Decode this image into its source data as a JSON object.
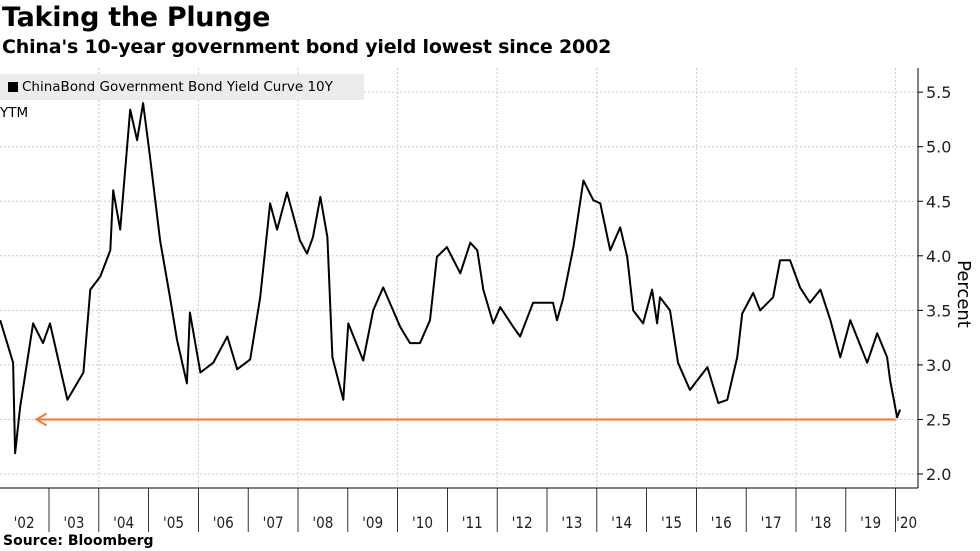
{
  "title": "Taking the Plunge",
  "subtitle": "China's 10-year government bond yield lowest since 2002",
  "source": "Source: Bloomberg",
  "chart_data": {
    "type": "line",
    "title": "Taking the Plunge",
    "subtitle": "China's 10-year government bond yield lowest since 2002",
    "xlabel": "",
    "ylabel": "Percent",
    "y_axis_position": "right",
    "xlim": [
      2002,
      2020.45
    ],
    "ylim": [
      1.87,
      5.75
    ],
    "yticks": [
      2.0,
      2.5,
      3.0,
      3.5,
      4.0,
      4.5,
      5.0,
      5.5
    ],
    "ytick_labels": [
      "2.0",
      "2.5",
      "3.0",
      "3.5",
      "4.0",
      "4.5",
      "5.0",
      "5.5"
    ],
    "xtick_labels": [
      "'02",
      "'03",
      "'04",
      "'05",
      "'06",
      "'07",
      "'08",
      "'09",
      "'10",
      "'11",
      "'12",
      "'13",
      "'14",
      "'15",
      "'16",
      "'17",
      "'18",
      "'19",
      "'20"
    ],
    "grid": true,
    "legend_position": "top-left",
    "series": [
      {
        "name": "ChinaBond Government Bond Yield Curve 10Y YTM",
        "color": "#000000",
        "x": [
          2002.02,
          2002.28,
          2002.32,
          2002.42,
          2002.68,
          2002.88,
          2003.02,
          2003.37,
          2003.69,
          2003.83,
          2004.03,
          2004.23,
          2004.29,
          2004.43,
          2004.63,
          2004.77,
          2004.89,
          2005.03,
          2005.23,
          2005.43,
          2005.57,
          2005.77,
          2005.83,
          2006.04,
          2006.3,
          2006.58,
          2006.78,
          2007.04,
          2007.24,
          2007.44,
          2007.58,
          2007.78,
          2008.04,
          2008.18,
          2008.3,
          2008.45,
          2008.59,
          2008.69,
          2008.91,
          2009.01,
          2009.31,
          2009.51,
          2009.71,
          2010.05,
          2010.25,
          2010.45,
          2010.65,
          2010.79,
          2010.99,
          2011.26,
          2011.46,
          2011.6,
          2011.72,
          2011.92,
          2012.06,
          2012.32,
          2012.46,
          2012.72,
          2013.12,
          2013.2,
          2013.32,
          2013.53,
          2013.73,
          2013.93,
          2014.07,
          2014.27,
          2014.47,
          2014.61,
          2014.73,
          2014.93,
          2015.11,
          2015.21,
          2015.27,
          2015.47,
          2015.63,
          2015.87,
          2016.22,
          2016.44,
          2016.62,
          2016.82,
          2016.92,
          2017.14,
          2017.28,
          2017.54,
          2017.68,
          2017.88,
          2018.08,
          2018.28,
          2018.49,
          2018.69,
          2018.89,
          2019.09,
          2019.43,
          2019.63,
          2019.83,
          2019.89,
          2020.03,
          2020.09
        ],
        "values": [
          3.41,
          3.02,
          2.19,
          2.61,
          3.38,
          3.2,
          3.38,
          2.68,
          2.93,
          3.69,
          3.81,
          4.05,
          4.6,
          4.24,
          5.34,
          5.06,
          5.4,
          4.9,
          4.14,
          3.62,
          3.23,
          2.83,
          3.48,
          2.93,
          3.02,
          3.26,
          2.96,
          3.05,
          3.62,
          4.48,
          4.24,
          4.58,
          4.14,
          4.02,
          4.17,
          4.54,
          4.17,
          3.07,
          2.68,
          3.38,
          3.04,
          3.5,
          3.71,
          3.35,
          3.2,
          3.2,
          3.41,
          3.99,
          4.08,
          3.84,
          4.12,
          4.05,
          3.69,
          3.38,
          3.53,
          3.35,
          3.26,
          3.57,
          3.57,
          3.41,
          3.6,
          4.08,
          4.69,
          4.51,
          4.48,
          4.05,
          4.26,
          3.99,
          3.5,
          3.38,
          3.69,
          3.38,
          3.62,
          3.5,
          3.02,
          2.77,
          2.98,
          2.65,
          2.68,
          3.07,
          3.47,
          3.66,
          3.5,
          3.62,
          3.96,
          3.96,
          3.71,
          3.57,
          3.69,
          3.41,
          3.07,
          3.41,
          3.02,
          3.29,
          3.07,
          2.86,
          2.52,
          2.59
        ]
      }
    ],
    "annotations": [
      {
        "type": "arrow",
        "y": 2.5,
        "x_from": 2020.0,
        "x_to": 2002.75,
        "color": "#f07a2f"
      }
    ]
  }
}
